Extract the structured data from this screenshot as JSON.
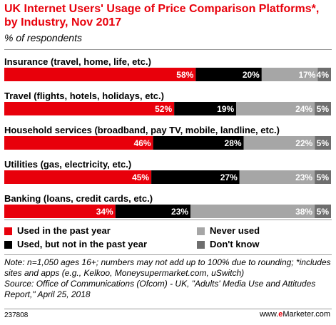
{
  "title": "UK Internet Users' Usage of Price Comparison Platforms*, by Industry, Nov 2017",
  "subtitle": "% of respondents",
  "chart_data": {
    "type": "bar",
    "orientation": "horizontal",
    "stacked": true,
    "categories": [
      "Insurance (travel, home, life, etc.)",
      "Travel (flights, hotels, holidays, etc.)",
      "Household services (broadband, pay TV, mobile, landline, etc.)",
      "Utilities (gas, electricity, etc.)",
      "Banking (loans, credit cards, etc.)"
    ],
    "series": [
      {
        "name": "Used in the past year",
        "values": [
          58,
          52,
          46,
          45,
          34
        ],
        "color": "#e8000b",
        "label_color": "#ffffff"
      },
      {
        "name": "Used, but not in the past year",
        "values": [
          20,
          19,
          28,
          27,
          23
        ],
        "color": "#000000",
        "label_color": "#ffffff"
      },
      {
        "name": "Never used",
        "values": [
          17,
          24,
          22,
          23,
          38
        ],
        "color": "#a6a6a6",
        "label_color": "#ffffff"
      },
      {
        "name": "Don't know",
        "values": [
          4,
          5,
          5,
          5,
          5
        ],
        "color": "#6e6e6e",
        "label_color": "#ffffff"
      }
    ],
    "value_suffix": "%",
    "legend_position": "bottom",
    "grid": false
  },
  "legend": {
    "items": [
      {
        "label": "Used in the past year",
        "color": "#e8000b"
      },
      {
        "label": "Never used",
        "color": "#a6a6a6"
      },
      {
        "label": "Used, but not in the past year",
        "color": "#000000"
      },
      {
        "label": "Don't know",
        "color": "#6e6e6e"
      }
    ]
  },
  "note": "Note: n=1,050 ages 16+; numbers may not add up to 100% due to rounding; *includes sites and apps (e.g., Kelkoo, Moneysupermarket.com, uSwitch)",
  "source": "Source: Office of Communications (Ofcom) - UK, \"Adults' Media Use and Attitudes Report,\" April 25, 2018",
  "footer": {
    "chart_id": "237808",
    "brand_prefix": "www.",
    "brand_accent": "e",
    "brand_suffix": "Marketer.com"
  }
}
